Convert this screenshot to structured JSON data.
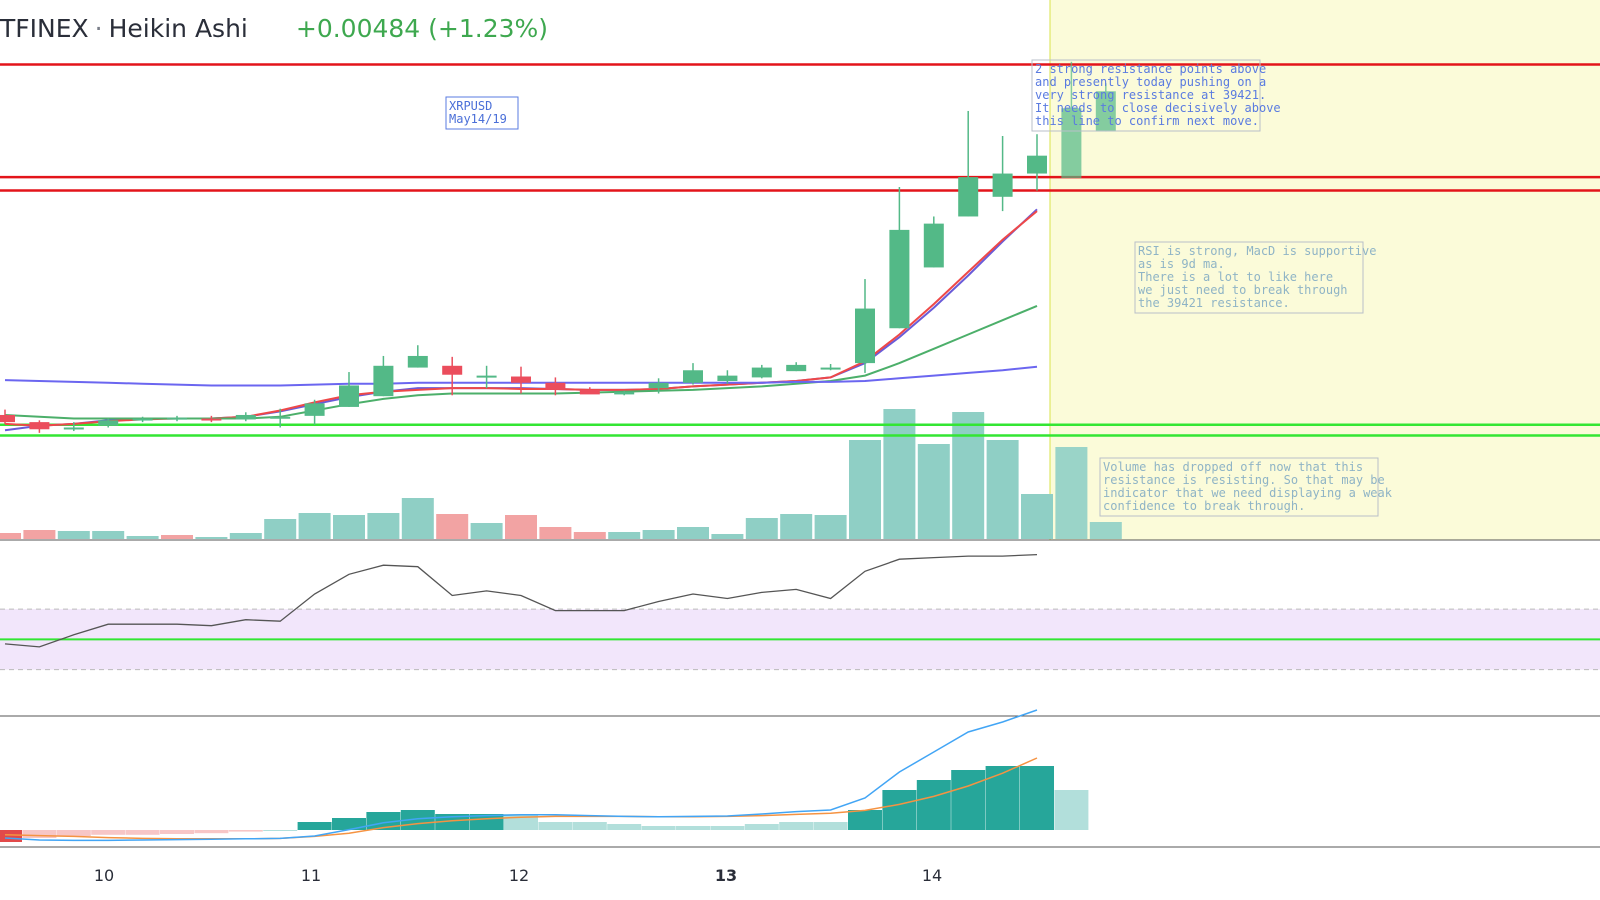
{
  "header": {
    "symbol": "TFINEX",
    "chart_style": "Heikin Ashi",
    "change": "+0.00484 (+1.23%)"
  },
  "colors": {
    "bull_candle": "#53b987",
    "bear_candle": "#eb4d5c",
    "resistance_line": "#e3141a",
    "support_line": "#33e633",
    "ma_purple": "#6a5bd8",
    "ma_red": "#ee4848",
    "ma_green": "#4caf6a",
    "ma_blue": "#6b66f0",
    "forecast_region": "#fbfbd9",
    "volume_bull": "#8fcfc5",
    "volume_bear": "#f2a3a3",
    "rsi_band": "#f2e6fb",
    "rsi_line": "#555555",
    "macd_line": "#42a5f5",
    "signal_line": "#f59342",
    "hist_dark": "#26a69a",
    "hist_light": "#b2dfdb"
  },
  "annotations": {
    "label_box": [
      "XRPUSD",
      "May14/19"
    ],
    "resistance_note": [
      "2 strong resistance points above",
      "and presently today pushing on a",
      "very strong resistance at 39421.",
      "It needs to close decisively above",
      "this line to confirm next move."
    ],
    "rsi_note": [
      "RSI is strong, MacD is supportive",
      "as is 9d ma.",
      "There is a lot to like here",
      "we just need to break through",
      "the 39421 resistance."
    ],
    "volume_note": [
      "Volume has dropped off now that this",
      "resistance is resisting. So that may be",
      "indicator that we need displaying a weak",
      "confidence to break through."
    ]
  },
  "chart_data": {
    "type": "candlestick",
    "title": "TFINEX · Heikin Ashi",
    "x_ticks": [
      "10",
      "11",
      "12",
      "13",
      "14"
    ],
    "candles": [
      {
        "o": 0.3838,
        "h": 0.3844,
        "l": 0.3828,
        "c": 0.383
      },
      {
        "o": 0.383,
        "h": 0.3832,
        "l": 0.3818,
        "c": 0.3822
      },
      {
        "o": 0.3822,
        "h": 0.383,
        "l": 0.382,
        "c": 0.3824
      },
      {
        "o": 0.3826,
        "h": 0.3834,
        "l": 0.3824,
        "c": 0.3832
      },
      {
        "o": 0.3832,
        "h": 0.3836,
        "l": 0.383,
        "c": 0.3834
      },
      {
        "o": 0.3834,
        "h": 0.3837,
        "l": 0.3831,
        "c": 0.3835
      },
      {
        "o": 0.3834,
        "h": 0.3837,
        "l": 0.383,
        "c": 0.3832
      },
      {
        "o": 0.3833,
        "h": 0.3841,
        "l": 0.3831,
        "c": 0.3838
      },
      {
        "o": 0.3834,
        "h": 0.3845,
        "l": 0.3824,
        "c": 0.3836
      },
      {
        "o": 0.3837,
        "h": 0.3855,
        "l": 0.3827,
        "c": 0.3851
      },
      {
        "o": 0.3847,
        "h": 0.3886,
        "l": 0.3847,
        "c": 0.3871
      },
      {
        "o": 0.3859,
        "h": 0.3904,
        "l": 0.3859,
        "c": 0.3893
      },
      {
        "o": 0.3891,
        "h": 0.3916,
        "l": 0.3891,
        "c": 0.3904
      },
      {
        "o": 0.3893,
        "h": 0.3903,
        "l": 0.386,
        "c": 0.3883
      },
      {
        "o": 0.388,
        "h": 0.3893,
        "l": 0.3868,
        "c": 0.3882
      },
      {
        "o": 0.3881,
        "h": 0.3892,
        "l": 0.3862,
        "c": 0.3874
      },
      {
        "o": 0.3874,
        "h": 0.388,
        "l": 0.386,
        "c": 0.3866
      },
      {
        "o": 0.3866,
        "h": 0.3869,
        "l": 0.3862,
        "c": 0.3861
      },
      {
        "o": 0.3861,
        "h": 0.3865,
        "l": 0.386,
        "c": 0.3864
      },
      {
        "o": 0.3868,
        "h": 0.3879,
        "l": 0.3862,
        "c": 0.3874
      },
      {
        "o": 0.3874,
        "h": 0.3896,
        "l": 0.3872,
        "c": 0.3888
      },
      {
        "o": 0.3876,
        "h": 0.3888,
        "l": 0.3873,
        "c": 0.3882
      },
      {
        "o": 0.388,
        "h": 0.3894,
        "l": 0.3879,
        "c": 0.3891
      },
      {
        "o": 0.3887,
        "h": 0.3897,
        "l": 0.3887,
        "c": 0.3894
      },
      {
        "o": 0.389,
        "h": 0.3895,
        "l": 0.3888,
        "c": 0.3891
      },
      {
        "o": 0.3896,
        "h": 0.399,
        "l": 0.3885,
        "c": 0.3957
      },
      {
        "o": 0.3935,
        "h": 0.4093,
        "l": 0.3935,
        "c": 0.4045
      },
      {
        "o": 0.4003,
        "h": 0.406,
        "l": 0.4003,
        "c": 0.4052
      },
      {
        "o": 0.406,
        "h": 0.4178,
        "l": 0.406,
        "c": 0.4104
      },
      {
        "o": 0.4082,
        "h": 0.415,
        "l": 0.4066,
        "c": 0.4108
      },
      {
        "o": 0.4108,
        "h": 0.4152,
        "l": 0.4089,
        "c": 0.4128
      }
    ],
    "forecast_candles": [
      {
        "o": 0.4103,
        "h": 0.4233,
        "l": 0.4103,
        "c": 0.4181
      },
      {
        "o": 0.4155,
        "h": 0.4209,
        "l": 0.4155,
        "c": 0.42
      }
    ],
    "moving_averages": [
      {
        "name": "ma_purple",
        "values": [
          0.3821,
          0.3826,
          0.3828,
          0.3832,
          0.3834,
          0.3834,
          0.3834,
          0.3836,
          0.3842,
          0.385,
          0.3858,
          0.3864,
          0.3868,
          0.3868,
          0.3868,
          0.3868,
          0.3867,
          0.3866,
          0.3866,
          0.3867,
          0.387,
          0.3872,
          0.3874,
          0.3876,
          0.388,
          0.3896,
          0.3925,
          0.3958,
          0.3994,
          0.4032,
          0.4068
        ]
      },
      {
        "name": "ma_red",
        "values": [
          0.3828,
          0.3826,
          0.3828,
          0.3831,
          0.3833,
          0.3834,
          0.3834,
          0.3836,
          0.3843,
          0.3852,
          0.386,
          0.3864,
          0.3866,
          0.3868,
          0.3868,
          0.3867,
          0.3867,
          0.3866,
          0.3866,
          0.3867,
          0.387,
          0.3872,
          0.3874,
          0.3876,
          0.388,
          0.3898,
          0.3928,
          0.3962,
          0.3998,
          0.4034,
          0.4066
        ]
      },
      {
        "name": "ma_green",
        "values": [
          0.3838,
          0.3836,
          0.3834,
          0.3834,
          0.3834,
          0.3834,
          0.3834,
          0.3834,
          0.3836,
          0.3843,
          0.385,
          0.3856,
          0.386,
          0.3862,
          0.3862,
          0.3862,
          0.3862,
          0.3863,
          0.3864,
          0.3865,
          0.3866,
          0.3868,
          0.387,
          0.3873,
          0.3876,
          0.3882,
          0.3896,
          0.3912,
          0.3928,
          0.3944,
          0.396
        ]
      },
      {
        "name": "ma_blue",
        "values": [
          0.3877,
          0.3876,
          0.3875,
          0.3874,
          0.3873,
          0.3872,
          0.3871,
          0.3871,
          0.3871,
          0.3872,
          0.3873,
          0.3873,
          0.3874,
          0.3874,
          0.3874,
          0.3874,
          0.3874,
          0.3874,
          0.3874,
          0.3874,
          0.3874,
          0.3874,
          0.3874,
          0.3875,
          0.3875,
          0.3876,
          0.3879,
          0.3882,
          0.3885,
          0.3888,
          0.3892
        ]
      }
    ],
    "horizontal_lines": [
      {
        "kind": "resistance",
        "value": 0.423
      },
      {
        "kind": "resistance",
        "value": 0.4104
      },
      {
        "kind": "resistance",
        "value": 0.4089
      },
      {
        "kind": "support",
        "value": 0.3827
      },
      {
        "kind": "support",
        "value": 0.3815
      }
    ],
    "volume": {
      "bars": [
        6,
        9,
        8,
        8,
        3,
        4,
        2,
        6,
        20,
        26,
        24,
        26,
        41,
        25,
        16,
        24,
        12,
        7,
        7,
        9,
        12,
        5,
        21,
        25,
        24,
        99,
        130,
        95,
        127,
        99,
        45
      ],
      "forecast_bars": [
        92,
        17
      ],
      "bear_bars": [
        0,
        1,
        5,
        13,
        15,
        16,
        17
      ]
    },
    "rsi": {
      "values": [
        47,
        45,
        53,
        60,
        60,
        60,
        59,
        63,
        62,
        80,
        93,
        99,
        98,
        79,
        82,
        79,
        69,
        69,
        69,
        75,
        80,
        77,
        81,
        83,
        77,
        95,
        103,
        104,
        105,
        105,
        106
      ],
      "upper_band": 70,
      "lower_band": 30,
      "midline": 50
    },
    "macd": {
      "macd_line": [
        -2,
        -2.5,
        -2.6,
        -2.6,
        -2.5,
        -2.4,
        -2.3,
        -2.2,
        -2.1,
        -1.5,
        0.1,
        1.8,
        2.8,
        3.3,
        3.6,
        3.8,
        3.8,
        3.6,
        3.4,
        3.3,
        3.4,
        3.5,
        4.0,
        4.6,
        5.0,
        8.0,
        14.5,
        19.5,
        24.5,
        27.0,
        30.0
      ],
      "signal_line": [
        -1.2,
        -1.4,
        -1.6,
        -1.9,
        -2.1,
        -2.2,
        -2.2,
        -2.2,
        -2.1,
        -1.6,
        -0.8,
        0.6,
        1.6,
        2.3,
        2.8,
        3.2,
        3.4,
        3.4,
        3.4,
        3.3,
        3.3,
        3.4,
        3.6,
        3.9,
        4.2,
        4.9,
        6.4,
        8.4,
        11.0,
        14.2,
        18.0
      ],
      "histogram": [
        -3,
        -2,
        -1.5,
        -1.2,
        -1.2,
        -1.0,
        -0.8,
        -0.4,
        0,
        2,
        3,
        4.5,
        5,
        4,
        4,
        4,
        2,
        2,
        1.5,
        1,
        1,
        1,
        1.5,
        2,
        2,
        5,
        10,
        12.5,
        15,
        16,
        16
      ]
    }
  }
}
